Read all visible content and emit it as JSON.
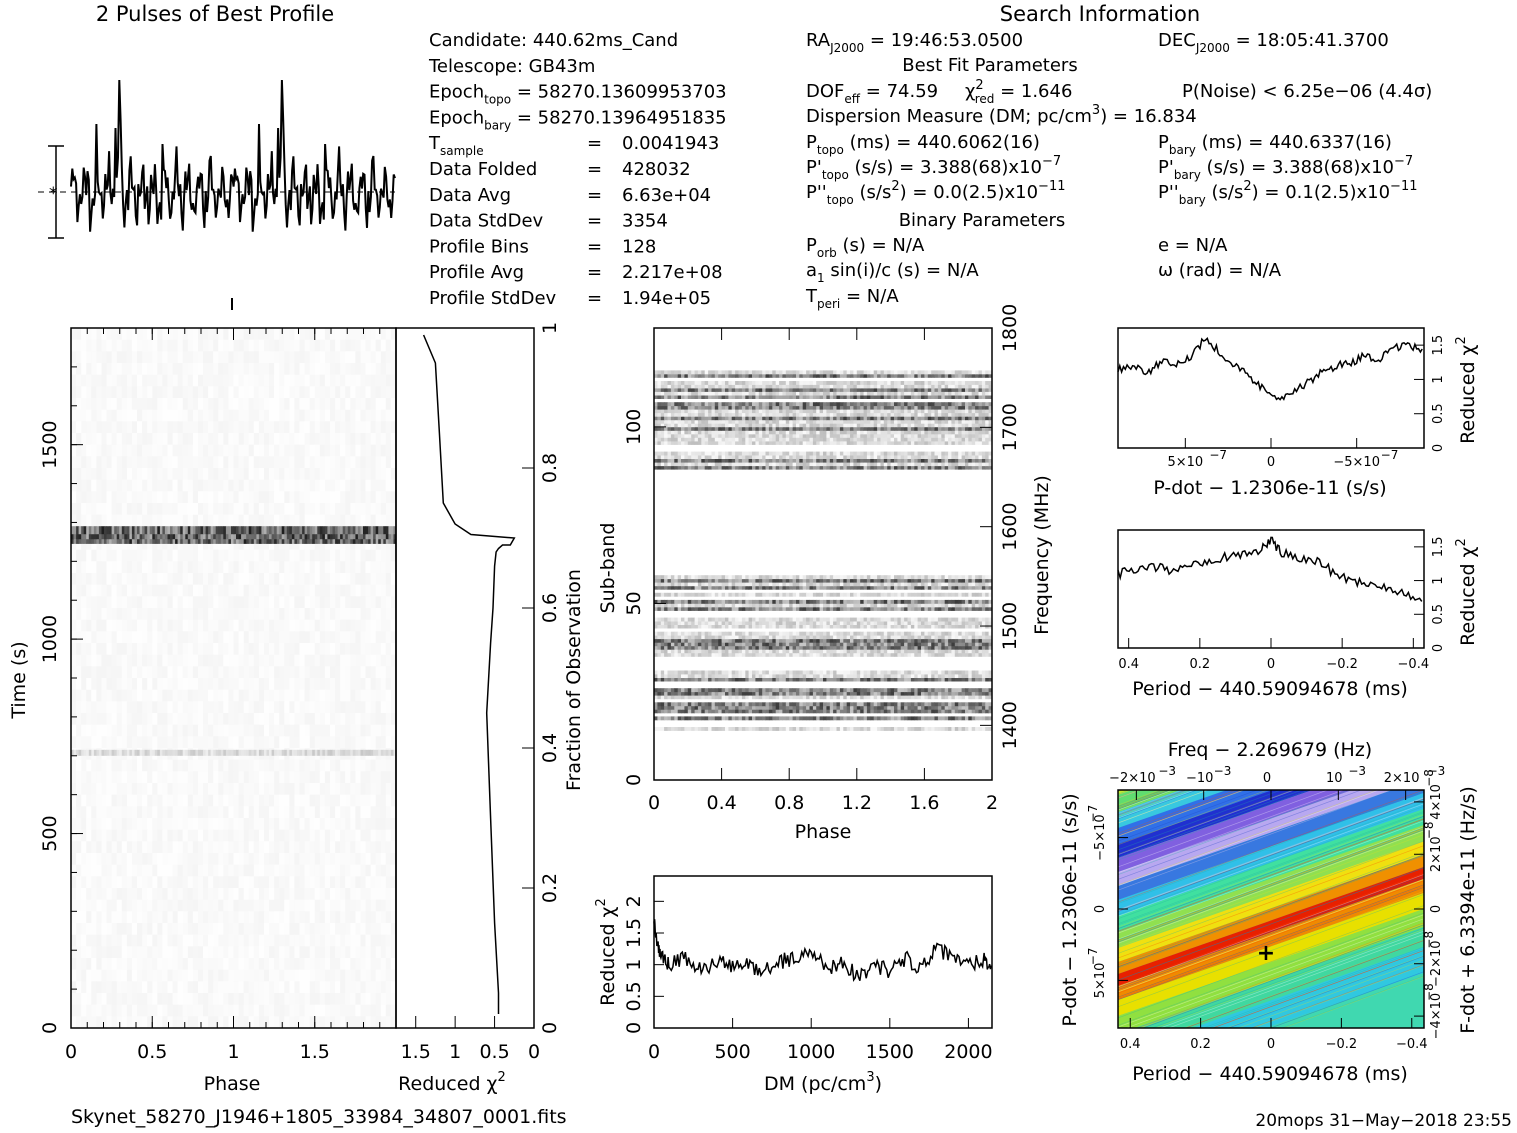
{
  "header": {
    "profile_title": "2 Pulses of Best Profile",
    "search_title": "Search Information"
  },
  "info": {
    "left": [
      {
        "k": "Candidate:",
        "v": "440.62ms_Cand"
      },
      {
        "k": "Telescope:",
        "v": "GB43m"
      },
      {
        "k": "Epoch",
        "ks": "topo",
        "v": "= 58270.13609953703"
      },
      {
        "k": "Epoch",
        "ks": "bary",
        "v": "= 58270.13964951835"
      },
      {
        "k": "T",
        "ks": "sample",
        "v": "=",
        "v2": "0.0041943"
      },
      {
        "k": "Data Folded",
        "v": "=",
        "v2": "428032"
      },
      {
        "k": "Data Avg",
        "v": "=",
        "v2": "6.63e+04"
      },
      {
        "k": "Data StdDev",
        "v": "=",
        "v2": "3354"
      },
      {
        "k": "Profile Bins",
        "v": "=",
        "v2": "128"
      },
      {
        "k": "Profile Avg",
        "v": "=",
        "v2": "2.217e+08"
      },
      {
        "k": "Profile StdDev",
        "v": "=",
        "v2": "1.94e+05"
      }
    ],
    "ra": {
      "k": "RA",
      "ks": "J2000",
      "v": "= 19:46:53.0500"
    },
    "dec": {
      "k": "DEC",
      "ks": "J2000",
      "v": "= 18:05:41.3700"
    },
    "best_fit_title": "Best Fit Parameters",
    "dof": {
      "k": "DOF",
      "ks": "eff",
      "v": "= 74.59"
    },
    "chi": {
      "k": "χ",
      "ks": "red",
      "sup": "2",
      "v": "= 1.646"
    },
    "pnoise": "P(Noise) < 6.25e−06  (4.4σ)",
    "dm_line": {
      "pre": "Dispersion Measure (DM; pc/cm",
      "sup": "3",
      "post": ") = 16.834"
    },
    "ptopo": {
      "k": "P",
      "ks": "topo",
      "v": "(ms) =  440.6062(16)"
    },
    "pbary": {
      "k": "P",
      "ks": "bary",
      "v": "(ms) =  440.6337(16)"
    },
    "pdtopo": {
      "k": "P'",
      "ks": "topo",
      "v": "(s/s) =  3.388(68)x10",
      "sup": "−7"
    },
    "pdbary": {
      "k": "P'",
      "ks": "bary",
      "v": "(s/s) =  3.388(68)x10",
      "sup": "−7"
    },
    "pddtopo": {
      "k": "P''",
      "ks": "topo",
      "v": "(s/s",
      "sup0": "2",
      "v2": ") = 0.0(2.5)x10",
      "sup": "−11"
    },
    "pddbary": {
      "k": "P''",
      "ks": "bary",
      "v": "(s/s",
      "sup0": "2",
      "v2": ") =  0.1(2.5)x10",
      "sup": "−11"
    },
    "binary_title": "Binary Parameters",
    "porb": {
      "k": "P",
      "ks": "orb",
      "v": "(s) = N/A"
    },
    "a1": {
      "k": "a",
      "ks": "1",
      "v": "sin(i)/c (s) = N/A"
    },
    "tperi": {
      "k": "T",
      "ks": "peri",
      "v": "= N/A"
    },
    "ecc": "e = N/A",
    "omega": "ω (rad) = N/A"
  },
  "footer": {
    "filename": "Skynet_58270_J1946+1805_33984_34807_0001.fits",
    "stamp": "20mops 31−May−2018 23:55"
  },
  "chart_data": [
    {
      "id": "profile",
      "type": "line",
      "title": "2 Pulses of Best Profile",
      "x_range": [
        0,
        2
      ],
      "y_shape": "noisy profile, 2 pulses, 128 bins each"
    },
    {
      "id": "time_phase",
      "type": "heatmap",
      "xlabel": "Phase",
      "ylabel": "Time (s)",
      "x_ticks": [
        "0",
        "0.5",
        "1",
        "1.5"
      ],
      "y_ticks": [
        "0",
        "500",
        "1000",
        "1500"
      ],
      "xlim": [
        0,
        2
      ],
      "ylim": [
        0,
        1800
      ],
      "bright_rows_s": [
        1250,
        1262,
        1275,
        700
      ],
      "colormap": "grayscale"
    },
    {
      "id": "chi_vs_time",
      "type": "line",
      "xlabel": "Reduced χ",
      "xlabel_sup": "2",
      "x_ticks": [
        "1.5",
        "1",
        "0.5",
        "0"
      ],
      "y2label": "Fraction of Observation",
      "y2_ticks": [
        "0",
        "0.2",
        "0.4",
        "0.6",
        "0.8",
        "1"
      ],
      "x": [
        0.45,
        0.45,
        0.5,
        0.55,
        0.6,
        0.55,
        0.52,
        0.5,
        0.48,
        0.45,
        0.4,
        0.3,
        0.25,
        0.8,
        1.0,
        1.15,
        1.2,
        1.25,
        1.4
      ],
      "y": [
        0.02,
        0.05,
        0.15,
        0.3,
        0.45,
        0.55,
        0.6,
        0.66,
        0.68,
        0.685,
        0.69,
        0.69,
        0.7,
        0.705,
        0.72,
        0.75,
        0.85,
        0.95,
        0.99
      ]
    },
    {
      "id": "subband_phase",
      "type": "heatmap",
      "xlabel": "Phase",
      "ylabel": "Sub-band",
      "y2label": "Frequency (MHz)",
      "x_ticks": [
        "0",
        "0.4",
        "0.8",
        "1.2",
        "1.6",
        "2"
      ],
      "y_ticks": [
        "0",
        "50",
        "100"
      ],
      "y2_ticks": [
        "1400",
        "1500",
        "1600",
        "1700",
        "1800"
      ],
      "xlim": [
        0,
        2
      ],
      "ylim": [
        0,
        128
      ],
      "occupied_subbands": [
        [
          14,
          30
        ],
        [
          35,
          58
        ],
        [
          88,
          115
        ]
      ],
      "colormap": "grayscale"
    },
    {
      "id": "dm_chi",
      "type": "line",
      "xlabel": "DM (pc/cm",
      "xlabel_sup": "3",
      "xlabel_post": ")",
      "ylabel": "Reduced χ",
      "ylabel_sup": "2",
      "x_ticks": [
        "0",
        "500",
        "1000",
        "1500",
        "2000"
      ],
      "y_ticks": [
        "0",
        "0.5",
        "1",
        "1.5",
        "2"
      ],
      "xlim": [
        0,
        2150
      ],
      "ylim": [
        0,
        2.4
      ],
      "x": [
        0,
        20,
        50,
        100,
        200,
        300,
        400,
        500,
        600,
        700,
        800,
        900,
        1000,
        1100,
        1200,
        1300,
        1400,
        1500,
        1600,
        1700,
        1800,
        1900,
        2000,
        2100,
        2150
      ],
      "y": [
        1.75,
        1.3,
        1.1,
        1.0,
        1.1,
        0.9,
        1.05,
        0.95,
        1.0,
        0.9,
        1.05,
        1.1,
        1.2,
        0.95,
        1.05,
        0.8,
        1.0,
        0.9,
        1.1,
        0.95,
        1.25,
        1.1,
        1.0,
        1.1,
        0.95
      ]
    },
    {
      "id": "pdot_chi",
      "type": "line",
      "xlabel": "P-dot − 1.2306e-11 (s/s)",
      "y2label": "Reduced χ",
      "y2label_sup": "2",
      "x_ticks": [
        "5×10",
        "0",
        "−5×10"
      ],
      "x_tick_sup": "−7",
      "y2_ticks": [
        "0",
        "0.5",
        "1",
        "1.5"
      ],
      "ylim": [
        0,
        1.75
      ],
      "y": [
        1.15,
        1.2,
        1.1,
        1.25,
        1.2,
        1.35,
        1.6,
        1.4,
        1.2,
        1.05,
        0.85,
        0.75,
        0.8,
        0.95,
        1.1,
        1.2,
        1.25,
        1.35,
        1.3,
        1.45,
        1.5,
        1.4
      ]
    },
    {
      "id": "period_chi",
      "type": "line",
      "xlabel": "Period − 440.59094678 (ms)",
      "y2label": "Reduced χ",
      "y2label_sup": "2",
      "x_ticks": [
        "0.4",
        "0.2",
        "0",
        "−0.2",
        "−0.4"
      ],
      "y2_ticks": [
        "0",
        "0.5",
        "1",
        "1.5"
      ],
      "xlim": [
        0.43,
        -0.43
      ],
      "ylim": [
        0,
        1.75
      ],
      "x": [
        0.43,
        0.38,
        0.33,
        0.28,
        0.23,
        0.18,
        0.13,
        0.08,
        0.03,
        0.0,
        -0.03,
        -0.08,
        -0.13,
        -0.18,
        -0.23,
        -0.28,
        -0.33,
        -0.38,
        -0.43
      ],
      "y": [
        1.1,
        1.15,
        1.2,
        1.15,
        1.25,
        1.3,
        1.35,
        1.4,
        1.45,
        1.6,
        1.4,
        1.35,
        1.3,
        1.1,
        1.0,
        0.95,
        0.9,
        0.8,
        0.75
      ]
    },
    {
      "id": "p_pdot_plane",
      "type": "heatmap",
      "title": "Freq − 2.269679 (Hz)",
      "xlabel": "Period − 440.59094678 (ms)",
      "ylabel": "P-dot − 1.2306e-11 (s/s)",
      "y2label": "F-dot + 6.3394e-11 (Hz/s)",
      "x_ticks": [
        "0.4",
        "0.2",
        "0",
        "−0.2",
        "−0.4"
      ],
      "x2_ticks": [
        "−2×10",
        "−10",
        "0",
        "10",
        "2×10"
      ],
      "x2_tick_sup": "−3",
      "y_ticks": [
        "−5×10",
        "0",
        "5×10"
      ],
      "y_tick_sup": "−7",
      "y2_ticks": [
        "−4×10",
        "−2×10",
        "0",
        "2×10",
        "4×10"
      ],
      "y2_tick_sup": "−8",
      "colormap": "rainbow",
      "marker": "+"
    }
  ]
}
